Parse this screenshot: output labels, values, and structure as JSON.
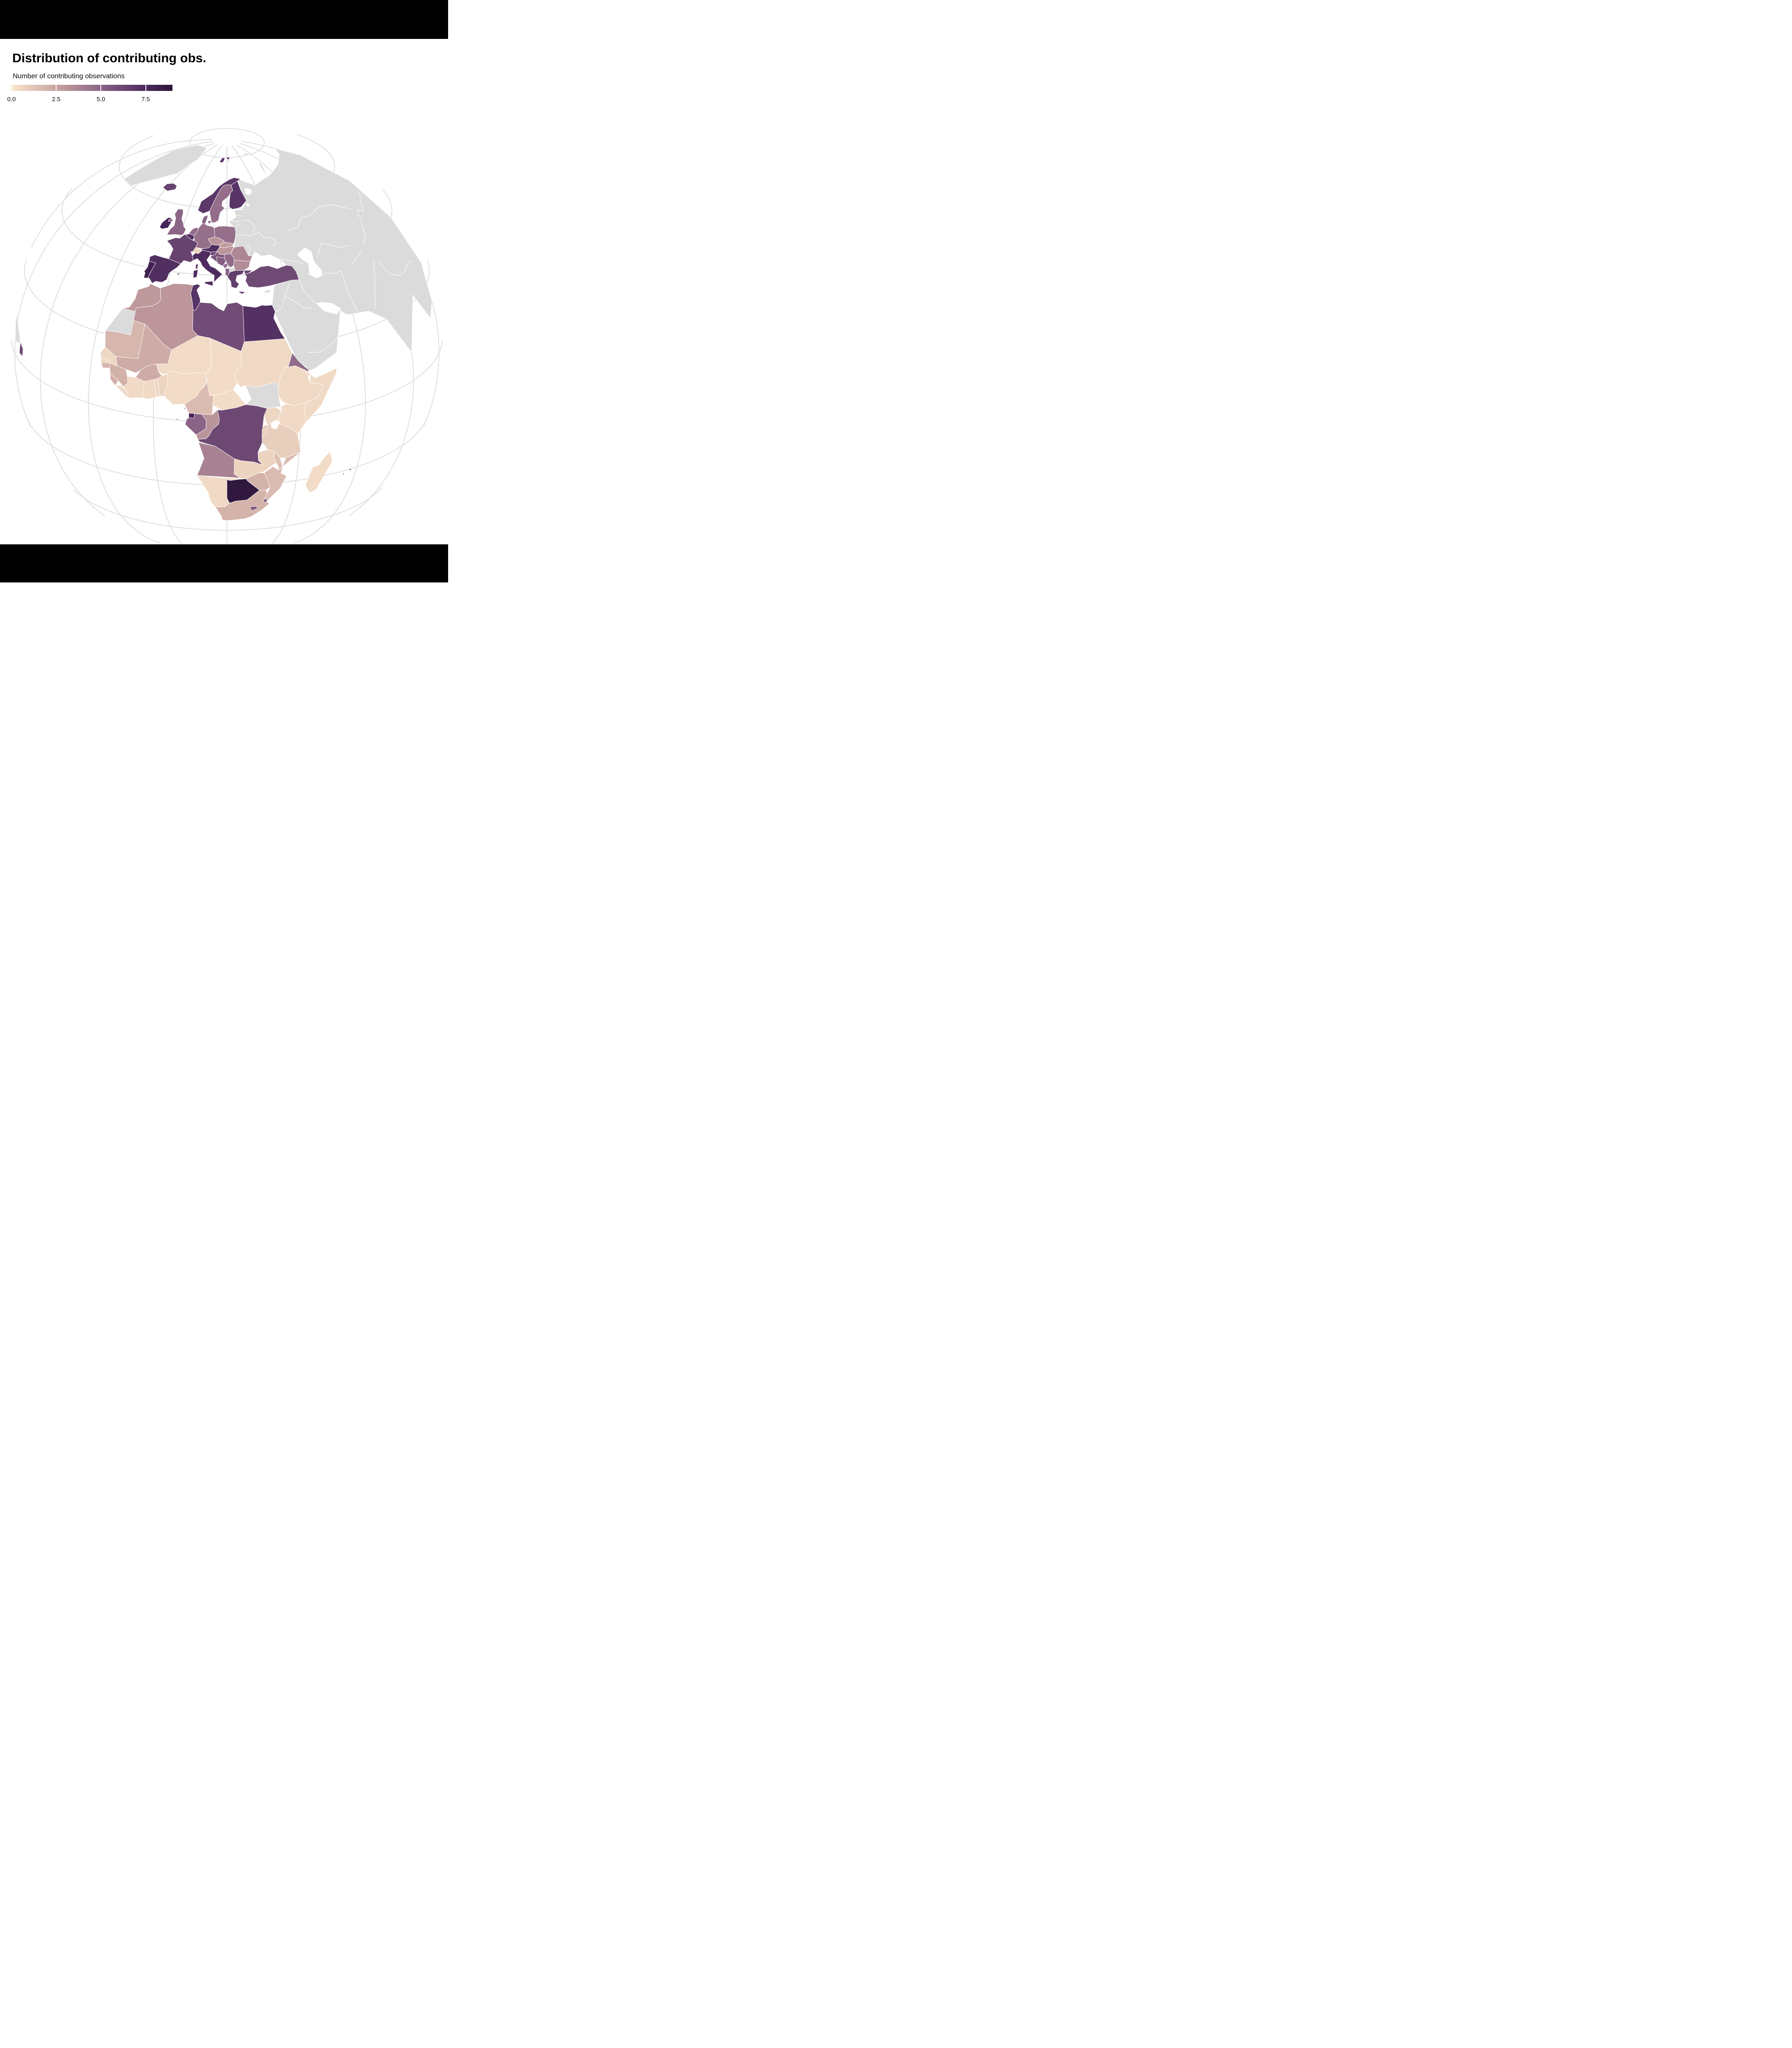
{
  "title": "Distribution of contributing obs.",
  "frame": {
    "bar_color": "#000000",
    "background": "#ffffff"
  },
  "legend": {
    "title": "Number of contributing observations",
    "ticks": [
      "0.0",
      "2.5",
      "5.0",
      "7.5"
    ],
    "tick_values": [
      0,
      2.5,
      5,
      7.5
    ],
    "domain": [
      0,
      9
    ],
    "gradient_stops": [
      {
        "value": 0.0,
        "color": "#fae7ce"
      },
      {
        "value": 2.5,
        "color": "#c8a3a0"
      },
      {
        "value": 5.0,
        "color": "#8a6386"
      },
      {
        "value": 7.5,
        "color": "#4c2a5e"
      },
      {
        "value": 9.0,
        "color": "#2c1539"
      }
    ]
  },
  "map": {
    "type": "choropleth",
    "projection": "orthographic",
    "ocean_color": "#ffffff",
    "no_data_color": "#dbdbdb",
    "graticule_color": "#dedede",
    "border_color": "#ffffff",
    "no_data_regions": [
      "Greenland",
      "Russia",
      "Eastern Europe",
      "Central Asia",
      "Middle East",
      "India",
      "China",
      "Luxembourg",
      "North Macedonia",
      "Kosovo",
      "Cyprus",
      "Western Sahara",
      "South Sudan",
      "South America"
    ],
    "countries": [
      {
        "key": "iceland",
        "name": "Iceland",
        "value": 6.4
      },
      {
        "key": "ireland",
        "name": "Ireland",
        "value": 7.8
      },
      {
        "key": "uk",
        "name": "United Kingdom",
        "value": 4.9
      },
      {
        "key": "portugal",
        "name": "Portugal",
        "value": 8.1
      },
      {
        "key": "spain",
        "name": "Spain",
        "value": 7.3
      },
      {
        "key": "france",
        "name": "France",
        "value": 6.4
      },
      {
        "key": "belgium",
        "name": "Belgium",
        "value": 7.1
      },
      {
        "key": "netherlands",
        "name": "Netherlands",
        "value": 4.6
      },
      {
        "key": "germany",
        "name": "Germany",
        "value": 4.5
      },
      {
        "key": "denmark",
        "name": "Denmark",
        "value": 4.9
      },
      {
        "key": "norway",
        "name": "Norway",
        "value": 6.9
      },
      {
        "key": "sweden",
        "name": "Sweden",
        "value": 4.6
      },
      {
        "key": "finland",
        "name": "Finland",
        "value": 7.0
      },
      {
        "key": "poland",
        "name": "Poland",
        "value": 4.5
      },
      {
        "key": "czechia",
        "name": "Czechia",
        "value": 3.1
      },
      {
        "key": "slovakia",
        "name": "Slovakia",
        "value": 2.8
      },
      {
        "key": "austria",
        "name": "Austria",
        "value": 7.3
      },
      {
        "key": "switzerland",
        "name": "Switzerland",
        "value": 0.7
      },
      {
        "key": "italy",
        "name": "Italy",
        "value": 7.4
      },
      {
        "key": "slovenia",
        "name": "Slovenia",
        "value": 6.1
      },
      {
        "key": "croatia",
        "name": "Croatia",
        "value": 5.6
      },
      {
        "key": "bosnia",
        "name": "Bosnia and Herzegovina",
        "value": 5.2
      },
      {
        "key": "montenegro",
        "name": "Montenegro",
        "value": 5.0
      },
      {
        "key": "serbia",
        "name": "Serbia",
        "value": 4.7
      },
      {
        "key": "hungary",
        "name": "Hungary",
        "value": 3.0
      },
      {
        "key": "romania",
        "name": "Romania",
        "value": 3.6
      },
      {
        "key": "bulgaria",
        "name": "Bulgaria",
        "value": 3.4
      },
      {
        "key": "albania",
        "name": "Albania",
        "value": 5.0
      },
      {
        "key": "greece",
        "name": "Greece",
        "value": 6.6
      },
      {
        "key": "turkey",
        "name": "Turkey",
        "value": 6.1
      },
      {
        "key": "malta",
        "name": "Malta",
        "value": 7.4
      },
      {
        "key": "morocco",
        "name": "Morocco",
        "value": 2.9
      },
      {
        "key": "algeria",
        "name": "Algeria",
        "value": 3.0
      },
      {
        "key": "tunisia",
        "name": "Tunisia",
        "value": 7.0
      },
      {
        "key": "libya",
        "name": "Libya",
        "value": 6.0
      },
      {
        "key": "egypt",
        "name": "Egypt",
        "value": 7.2
      },
      {
        "key": "mauritania",
        "name": "Mauritania",
        "value": 1.8
      },
      {
        "key": "mali",
        "name": "Mali",
        "value": 2.2
      },
      {
        "key": "niger",
        "name": "Niger",
        "value": 0.4
      },
      {
        "key": "chad",
        "name": "Chad",
        "value": 0.4
      },
      {
        "key": "sudan",
        "name": "Sudan",
        "value": 0.5
      },
      {
        "key": "eritrea",
        "name": "Eritrea",
        "value": 4.7
      },
      {
        "key": "djibouti",
        "name": "Djibouti",
        "value": 0.5
      },
      {
        "key": "ethiopia",
        "name": "Ethiopia",
        "value": 0.5
      },
      {
        "key": "somalia",
        "name": "Somalia",
        "value": 0.5
      },
      {
        "key": "senegal",
        "name": "Senegal",
        "value": 0.6
      },
      {
        "key": "gambia",
        "name": "Gambia",
        "value": 0.8
      },
      {
        "key": "guinea-bissau",
        "name": "Guinea-Bissau",
        "value": 1.8
      },
      {
        "key": "guinea",
        "name": "Guinea",
        "value": 2.0
      },
      {
        "key": "sierra-leone",
        "name": "Sierra Leone",
        "value": 2.0
      },
      {
        "key": "liberia",
        "name": "Liberia",
        "value": 0.5
      },
      {
        "key": "cote-divoire",
        "name": "Côte d'Ivoire",
        "value": 0.5
      },
      {
        "key": "ghana",
        "name": "Ghana",
        "value": 0.5
      },
      {
        "key": "togo",
        "name": "Togo",
        "value": 0.6
      },
      {
        "key": "benin",
        "name": "Benin",
        "value": 0.7
      },
      {
        "key": "burkina-faso",
        "name": "Burkina Faso",
        "value": 2.2
      },
      {
        "key": "nigeria",
        "name": "Nigeria",
        "value": 0.4
      },
      {
        "key": "cameroon",
        "name": "Cameroon",
        "value": 1.6
      },
      {
        "key": "car",
        "name": "Central African Republic",
        "value": 0.4
      },
      {
        "key": "equatorial-guinea",
        "name": "Equatorial Guinea",
        "value": 7.9
      },
      {
        "key": "sao-tome",
        "name": "São Tomé and Príncipe",
        "value": 7.5
      },
      {
        "key": "gabon",
        "name": "Gabon",
        "value": 5.0
      },
      {
        "key": "congo",
        "name": "Republic of the Congo",
        "value": 3.1
      },
      {
        "key": "drc",
        "name": "Democratic Republic of the Congo",
        "value": 6.2
      },
      {
        "key": "uganda",
        "name": "Uganda",
        "value": 0.6
      },
      {
        "key": "kenya",
        "name": "Kenya",
        "value": 0.5
      },
      {
        "key": "tanzania",
        "name": "Tanzania",
        "value": 0.9
      },
      {
        "key": "rwanda",
        "name": "Rwanda",
        "value": 1.0
      },
      {
        "key": "burundi",
        "name": "Burundi",
        "value": 1.0
      },
      {
        "key": "angola",
        "name": "Angola",
        "value": 3.8
      },
      {
        "key": "zambia",
        "name": "Zambia",
        "value": 0.7
      },
      {
        "key": "malawi",
        "name": "Malawi",
        "value": 1.4
      },
      {
        "key": "mozambique",
        "name": "Mozambique",
        "value": 1.6
      },
      {
        "key": "zimbabwe",
        "name": "Zimbabwe",
        "value": 1.9
      },
      {
        "key": "botswana",
        "name": "Botswana",
        "value": 8.8
      },
      {
        "key": "namibia",
        "name": "Namibia",
        "value": 0.5
      },
      {
        "key": "south-africa",
        "name": "South Africa",
        "value": 1.9
      },
      {
        "key": "lesotho",
        "name": "Lesotho",
        "value": 5.5
      },
      {
        "key": "eswatini",
        "name": "Eswatini",
        "value": 4.8
      },
      {
        "key": "madagascar",
        "name": "Madagascar",
        "value": 0.4
      },
      {
        "key": "mauritius",
        "name": "Mauritius",
        "value": 8.5
      },
      {
        "key": "reunion",
        "name": "Réunion",
        "value": 5.5
      },
      {
        "key": "french-guiana",
        "name": "French Guiana",
        "value": 6.2
      },
      {
        "key": "luxembourg",
        "name": "Luxembourg",
        "value": null
      },
      {
        "key": "north-macedonia",
        "name": "North Macedonia",
        "value": null
      },
      {
        "key": "kosovo",
        "name": "Kosovo",
        "value": null
      },
      {
        "key": "cyprus",
        "name": "Cyprus",
        "value": null
      },
      {
        "key": "western-sahara",
        "name": "Western Sahara",
        "value": null
      },
      {
        "key": "south-sudan",
        "name": "South Sudan",
        "value": null
      }
    ]
  }
}
